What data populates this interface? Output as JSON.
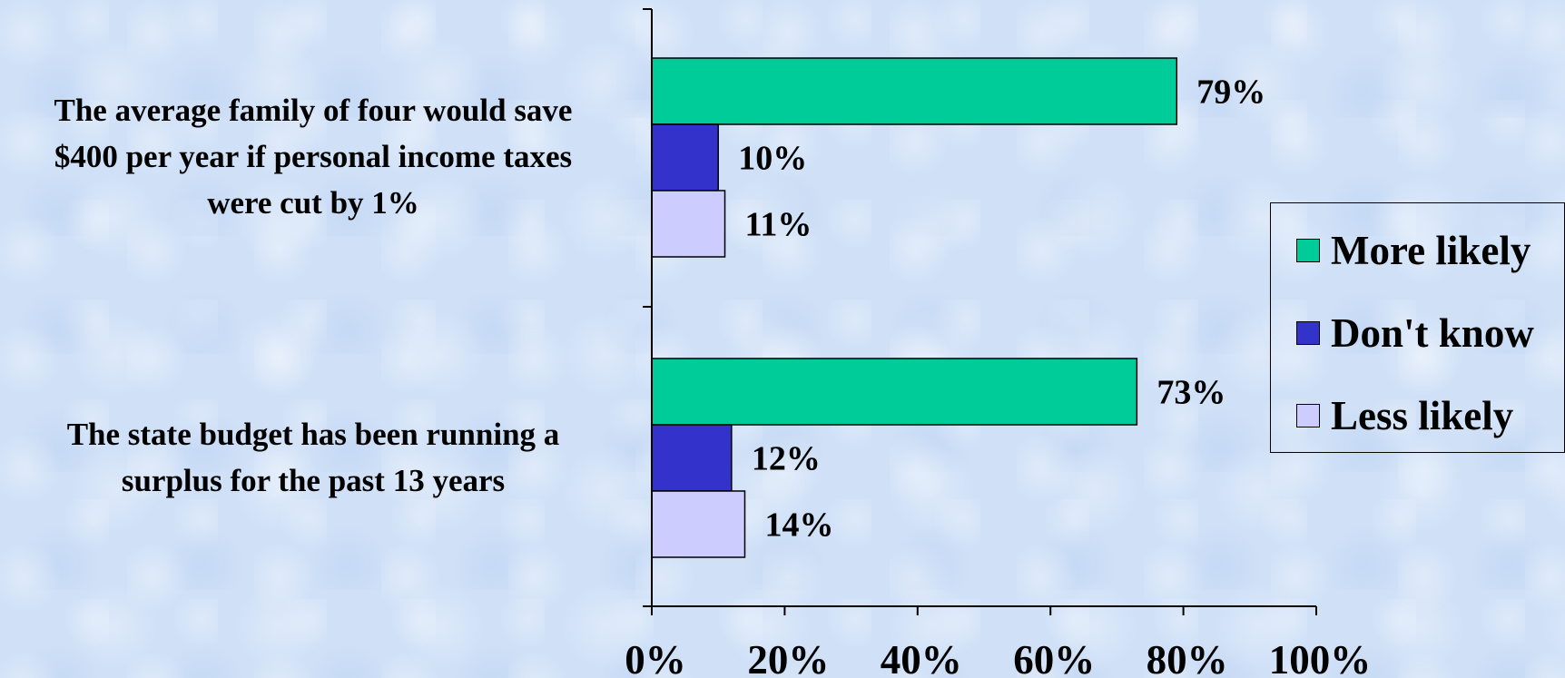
{
  "chart_data": {
    "type": "bar",
    "orientation": "horizontal",
    "categories": [
      "The average family of four would save $400 per year if personal income taxes were cut by 1%",
      "The state budget has been running a surplus for the past 13 years"
    ],
    "category_lines": [
      [
        "The average family of four would save",
        "$400 per year if personal income taxes",
        "were cut by 1%"
      ],
      [
        "The state budget has been running a",
        "surplus for the past 13 years"
      ]
    ],
    "series": [
      {
        "name": "More likely",
        "values": [
          79,
          73
        ],
        "labels": [
          "79%",
          "73%"
        ],
        "color": "#00cc99"
      },
      {
        "name": "Don't know",
        "values": [
          10,
          12
        ],
        "labels": [
          "10%",
          "12%"
        ],
        "color": "#3333cc"
      },
      {
        "name": "Less likely",
        "values": [
          11,
          14
        ],
        "labels": [
          "11%",
          "14%"
        ],
        "color": "#ccccff"
      }
    ],
    "xlim": [
      0,
      100
    ],
    "xticks": [
      0,
      20,
      40,
      60,
      80,
      100
    ],
    "xtick_labels": [
      "0%",
      "20%",
      "40%",
      "60%",
      "80%",
      "100%"
    ],
    "grid": false,
    "legend_position": "right"
  }
}
